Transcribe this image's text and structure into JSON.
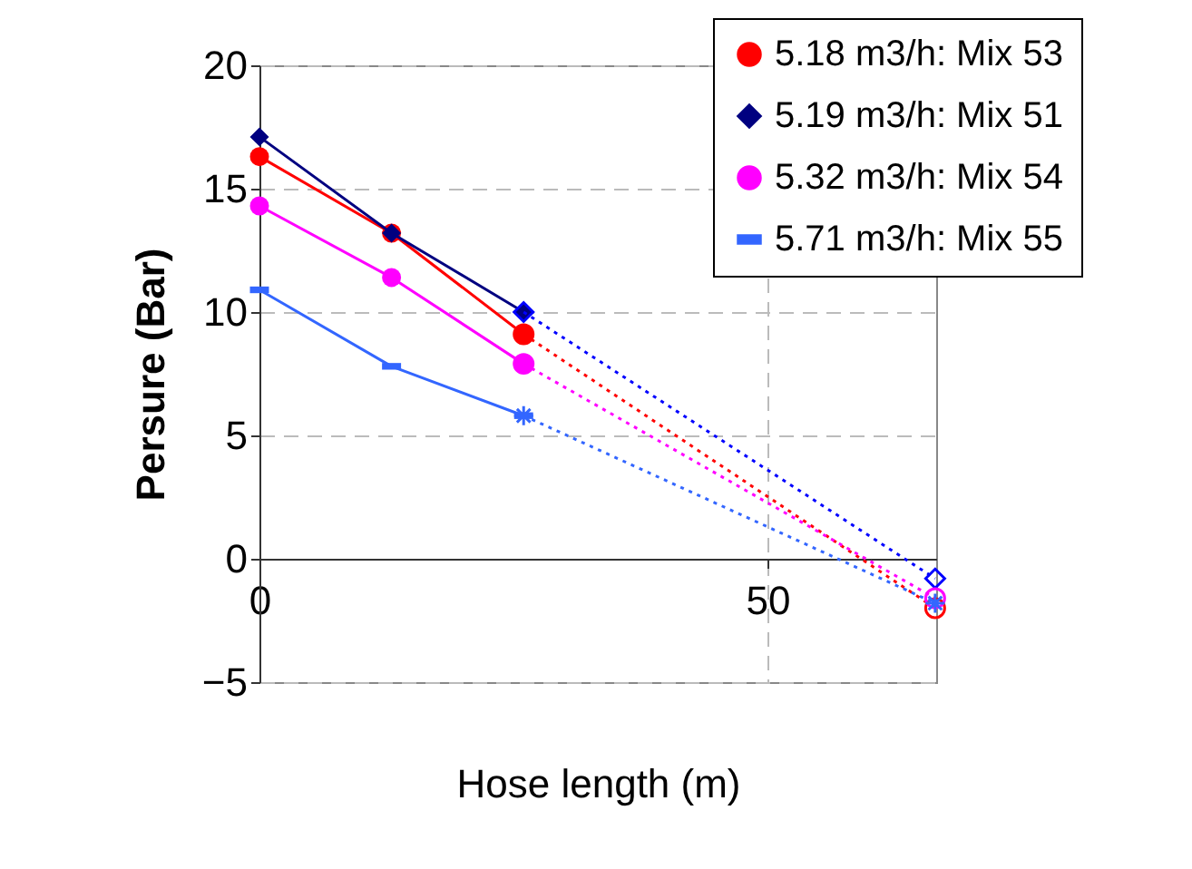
{
  "chart_data": {
    "type": "line",
    "xlabel": "Hose length (m)",
    "ylabel": "Persure (Bar)",
    "xlim": [
      0,
      66.6
    ],
    "xticks": [
      0,
      50
    ],
    "ylim": [
      -5,
      20
    ],
    "yticks": [
      -5,
      0,
      5,
      10,
      15,
      20
    ],
    "grid": true,
    "legend": "top right",
    "series": [
      {
        "name": "5.18 m3/h: Mix 53",
        "color": "#ff0000",
        "marker": "circle",
        "x": [
          0,
          13,
          26
        ],
        "values": [
          16.3,
          13.2,
          9.1
        ]
      },
      {
        "name": "5.19 m3/h: Mix 51",
        "color": "#000080",
        "marker": "diamond",
        "x": [
          0,
          13,
          26
        ],
        "values": [
          17.1,
          13.2,
          10.0
        ]
      },
      {
        "name": "5.32 m3/h: Mix 54",
        "color": "#ff00ff",
        "marker": "circle",
        "x": [
          0,
          13,
          26
        ],
        "values": [
          14.3,
          11.4,
          7.9
        ]
      },
      {
        "name": "5.71 m3/h: Mix 55",
        "color": "#3366ff",
        "marker": "square",
        "x": [
          0,
          13,
          26
        ],
        "values": [
          10.9,
          7.8,
          5.8
        ]
      },
      {
        "color": "#ff0000",
        "marker": "circle",
        "line_style": "dotted",
        "x": [
          26,
          66.5
        ],
        "values": [
          9.1,
          -2.0
        ]
      },
      {
        "color": "#0000ff",
        "marker": "diamond",
        "line_style": "dotted",
        "x": [
          26,
          66.5
        ],
        "values": [
          10.0,
          -0.8
        ]
      },
      {
        "color": "#ff00ff",
        "marker": "circle",
        "line_style": "dotted",
        "x": [
          26,
          66.5
        ],
        "values": [
          7.9,
          -1.6
        ]
      },
      {
        "color": "#3366ff",
        "marker": "cross",
        "line_style": "dotted",
        "x": [
          26,
          66.5
        ],
        "values": [
          5.8,
          -1.8
        ]
      }
    ]
  }
}
